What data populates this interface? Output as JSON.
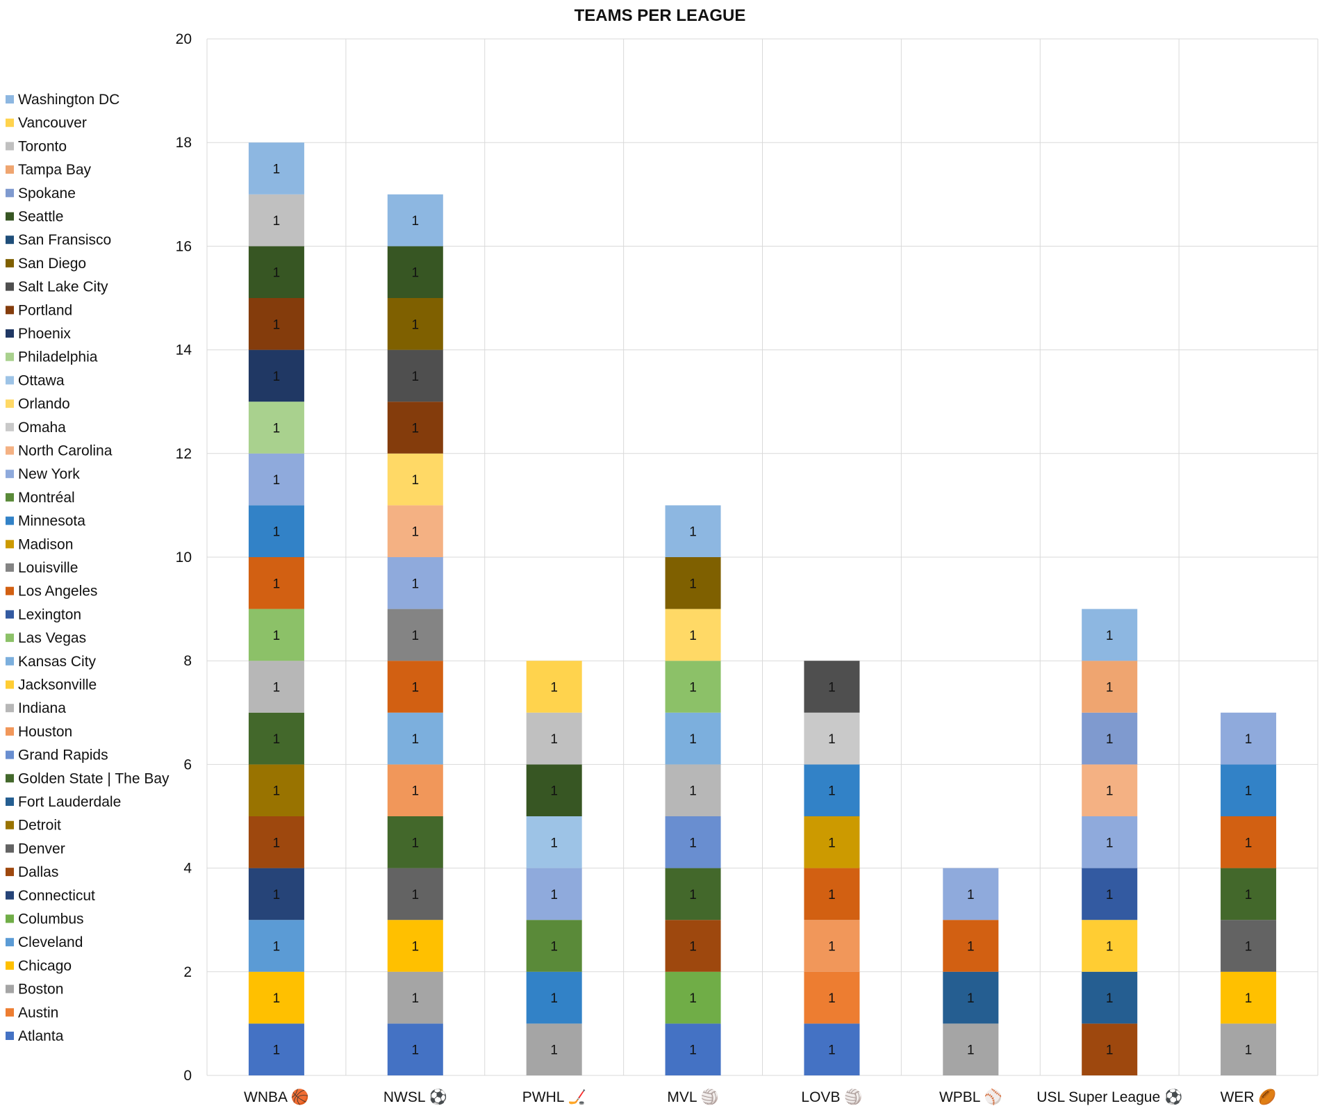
{
  "chart_data": {
    "type": "bar",
    "stacked": true,
    "title": "TEAMS PER LEAGUE",
    "xlabel": "",
    "ylabel": "",
    "ylim": [
      0,
      20
    ],
    "yticks": [
      0,
      2,
      4,
      6,
      8,
      10,
      12,
      14,
      16,
      18,
      20
    ],
    "grid": true,
    "legend_position": "left",
    "categories": [
      "WNBA 🏀",
      "NWSL ⚽",
      "PWHL 🏒",
      "MVL 🏐",
      "LOVB 🏐",
      "WPBL ⚾",
      "USL Super League ⚽",
      "WER 🏉"
    ],
    "series": [
      {
        "name": "Atlanta",
        "color": "#4472C4",
        "values": [
          1,
          1,
          0,
          1,
          1,
          0,
          0,
          0
        ]
      },
      {
        "name": "Austin",
        "color": "#ED7D31",
        "values": [
          0,
          0,
          0,
          0,
          1,
          0,
          0,
          0
        ]
      },
      {
        "name": "Boston",
        "color": "#A5A5A5",
        "values": [
          0,
          1,
          1,
          0,
          0,
          1,
          0,
          1
        ]
      },
      {
        "name": "Chicago",
        "color": "#FFC000",
        "values": [
          1,
          1,
          0,
          0,
          0,
          0,
          0,
          1
        ]
      },
      {
        "name": "Cleveland",
        "color": "#5B9BD5",
        "values": [
          1,
          0,
          0,
          0,
          0,
          0,
          0,
          0
        ]
      },
      {
        "name": "Columbus",
        "color": "#70AD47",
        "values": [
          0,
          0,
          0,
          1,
          0,
          0,
          0,
          0
        ]
      },
      {
        "name": "Connecticut",
        "color": "#264478",
        "values": [
          1,
          0,
          0,
          0,
          0,
          0,
          0,
          0
        ]
      },
      {
        "name": "Dallas",
        "color": "#9E480E",
        "values": [
          1,
          0,
          0,
          1,
          0,
          0,
          1,
          0
        ]
      },
      {
        "name": "Denver",
        "color": "#636363",
        "values": [
          0,
          1,
          0,
          0,
          0,
          0,
          0,
          1
        ]
      },
      {
        "name": "Detroit",
        "color": "#997300",
        "values": [
          1,
          0,
          0,
          0,
          0,
          0,
          0,
          0
        ]
      },
      {
        "name": "Fort Lauderdale",
        "color": "#255E91",
        "values": [
          0,
          0,
          0,
          0,
          0,
          1,
          1,
          0
        ]
      },
      {
        "name": "Golden State | The Bay",
        "color": "#43682B",
        "values": [
          1,
          1,
          0,
          1,
          0,
          0,
          0,
          1
        ]
      },
      {
        "name": "Grand Rapids",
        "color": "#698ED0",
        "values": [
          0,
          0,
          0,
          1,
          0,
          0,
          0,
          0
        ]
      },
      {
        "name": "Houston",
        "color": "#F1975A",
        "values": [
          0,
          1,
          0,
          0,
          1,
          0,
          0,
          0
        ]
      },
      {
        "name": "Indiana",
        "color": "#B7B7B7",
        "values": [
          1,
          0,
          0,
          1,
          0,
          0,
          0,
          0
        ]
      },
      {
        "name": "Jacksonville",
        "color": "#FFCD33",
        "values": [
          0,
          0,
          0,
          0,
          0,
          0,
          1,
          0
        ]
      },
      {
        "name": "Kansas City",
        "color": "#7CAFDD",
        "values": [
          0,
          1,
          0,
          1,
          0,
          0,
          0,
          0
        ]
      },
      {
        "name": "Las Vegas",
        "color": "#8CC168",
        "values": [
          1,
          0,
          0,
          1,
          0,
          0,
          0,
          0
        ]
      },
      {
        "name": "Lexington",
        "color": "#335AA1",
        "values": [
          0,
          0,
          0,
          0,
          0,
          0,
          1,
          0
        ]
      },
      {
        "name": "Los Angeles",
        "color": "#D26012",
        "values": [
          1,
          1,
          0,
          0,
          1,
          1,
          0,
          1
        ]
      },
      {
        "name": "Louisville",
        "color": "#848484",
        "values": [
          0,
          1,
          0,
          0,
          0,
          0,
          0,
          0
        ]
      },
      {
        "name": "Madison",
        "color": "#CC9A00",
        "values": [
          0,
          0,
          0,
          0,
          1,
          0,
          0,
          0
        ]
      },
      {
        "name": "Minnesota",
        "color": "#3282C7",
        "values": [
          1,
          0,
          1,
          0,
          1,
          0,
          0,
          1
        ]
      },
      {
        "name": "Montréal",
        "color": "#5A8A39",
        "values": [
          0,
          0,
          1,
          0,
          0,
          0,
          0,
          0
        ]
      },
      {
        "name": "New York",
        "color": "#8FAADC",
        "values": [
          1,
          1,
          1,
          0,
          0,
          1,
          1,
          1
        ]
      },
      {
        "name": "North Carolina",
        "color": "#F4B183",
        "values": [
          0,
          1,
          0,
          0,
          0,
          0,
          1,
          0
        ]
      },
      {
        "name": "Omaha",
        "color": "#C9C9C9",
        "values": [
          0,
          0,
          0,
          0,
          1,
          0,
          0,
          0
        ]
      },
      {
        "name": "Orlando",
        "color": "#FFD966",
        "values": [
          0,
          1,
          0,
          1,
          0,
          0,
          0,
          0
        ]
      },
      {
        "name": "Ottawa",
        "color": "#9DC3E6",
        "values": [
          0,
          0,
          1,
          0,
          0,
          0,
          0,
          0
        ]
      },
      {
        "name": "Philadelphia",
        "color": "#A9D18E",
        "values": [
          1,
          0,
          0,
          0,
          0,
          0,
          0,
          0
        ]
      },
      {
        "name": "Phoenix",
        "color": "#203864",
        "values": [
          1,
          0,
          0,
          0,
          0,
          0,
          0,
          0
        ]
      },
      {
        "name": "Portland",
        "color": "#843C0C",
        "values": [
          1,
          1,
          0,
          0,
          0,
          0,
          0,
          0
        ]
      },
      {
        "name": "Salt Lake City",
        "color": "#4F4F4F",
        "values": [
          0,
          1,
          0,
          0,
          1,
          0,
          0,
          0
        ]
      },
      {
        "name": "San Diego",
        "color": "#7F6000",
        "values": [
          0,
          1,
          0,
          1,
          0,
          0,
          0,
          0
        ]
      },
      {
        "name": "San Fransisco",
        "color": "#1F4E79",
        "values": [
          0,
          0,
          0,
          0,
          0,
          0,
          0,
          0
        ]
      },
      {
        "name": "Seattle",
        "color": "#375623",
        "values": [
          1,
          1,
          1,
          0,
          0,
          0,
          0,
          0
        ]
      },
      {
        "name": "Spokane",
        "color": "#7F9ACF",
        "values": [
          0,
          0,
          0,
          0,
          0,
          0,
          1,
          0
        ]
      },
      {
        "name": "Tampa Bay",
        "color": "#EFA570",
        "values": [
          0,
          0,
          0,
          0,
          0,
          0,
          1,
          0
        ]
      },
      {
        "name": "Toronto",
        "color": "#C0C0C0",
        "values": [
          1,
          0,
          1,
          0,
          0,
          0,
          0,
          0
        ]
      },
      {
        "name": "Vancouver",
        "color": "#FFD34D",
        "values": [
          0,
          0,
          1,
          0,
          0,
          0,
          0,
          0
        ]
      },
      {
        "name": "Washington DC",
        "color": "#8DB7E1",
        "values": [
          1,
          1,
          0,
          1,
          0,
          0,
          1,
          0
        ]
      }
    ]
  }
}
